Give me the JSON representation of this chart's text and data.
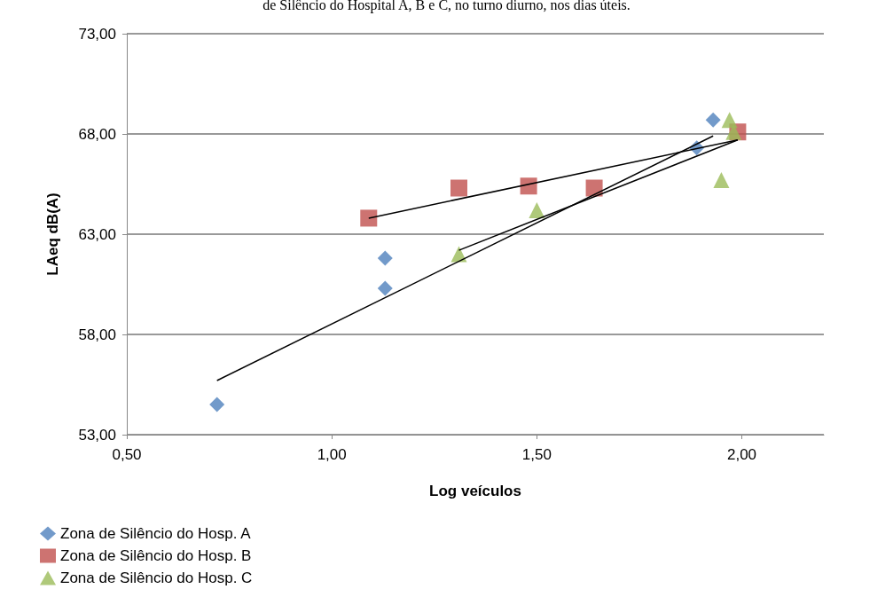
{
  "chart_data": {
    "type": "scatter",
    "title": "de Silêncio do Hospital A, B e C, no turno diurno, nos dias úteis.",
    "xlabel": "Log veículos",
    "ylabel": "LAeq dB(A)",
    "xlim": [
      0.5,
      2.2
    ],
    "xticks": [
      {
        "value": 0.5,
        "label": "0,50"
      },
      {
        "value": 1,
        "label": "1,00"
      },
      {
        "value": 1.5,
        "label": "1,50"
      },
      {
        "value": 2,
        "label": "2,00"
      }
    ],
    "ylim": [
      53,
      73
    ],
    "yticks": [
      {
        "value": 53,
        "label": "53,00"
      },
      {
        "value": 58,
        "label": "58,00"
      },
      {
        "value": 63,
        "label": "63,00"
      },
      {
        "value": 68,
        "label": "68,00"
      },
      {
        "value": 73,
        "label": "73,00"
      }
    ],
    "grid": "y",
    "legend": "bottom left",
    "series": [
      {
        "name": "Zona de Silêncio do Hosp. A",
        "color": "#4f81bd",
        "marker": "diamond",
        "x": [
          0.72,
          1.13,
          1.13,
          1.89,
          1.93
        ],
        "values": [
          54.5,
          61.8,
          60.3,
          67.3,
          68.7
        ]
      },
      {
        "name": "Zona de Silêncio do Hosp. B",
        "color": "#c0504d",
        "marker": "square",
        "x": [
          1.09,
          1.31,
          1.48,
          1.64,
          1.99
        ],
        "values": [
          63.8,
          65.3,
          65.4,
          65.3,
          68.1
        ]
      },
      {
        "name": "Zona de Silêncio do Hosp. C",
        "color": "#9bbb59",
        "marker": "triangle",
        "x": [
          1.31,
          1.5,
          1.95,
          1.97,
          1.98
        ],
        "values": [
          62.0,
          64.2,
          65.7,
          68.7,
          68.1
        ]
      },
      {
        "type": "line",
        "color": "#000000",
        "marker": "none",
        "x": [
          0.72,
          1.93
        ],
        "values": [
          55.7,
          67.9
        ]
      },
      {
        "type": "line",
        "color": "#000000",
        "marker": "none",
        "x": [
          1.09,
          1.99
        ],
        "values": [
          63.8,
          67.7
        ]
      },
      {
        "type": "line",
        "color": "#000000",
        "marker": "none",
        "x": [
          1.31,
          1.99
        ],
        "values": [
          62.2,
          67.7
        ]
      }
    ]
  }
}
